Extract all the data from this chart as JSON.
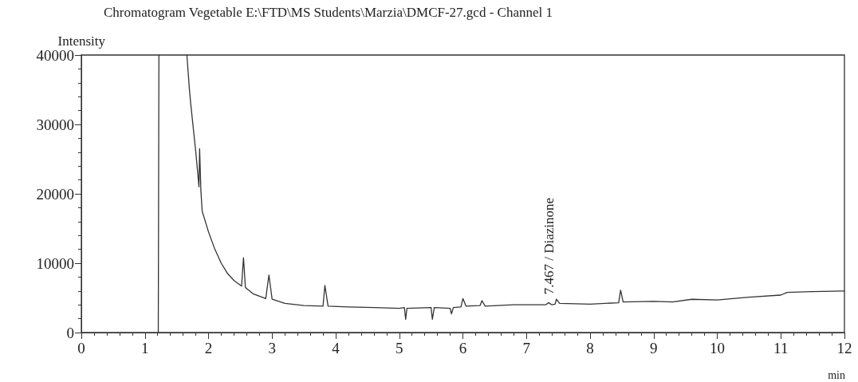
{
  "chart_data": {
    "type": "line",
    "title": "Chromatogram Vegetable E:\\FTD\\MS Students\\Marzia\\DMCF-27.gcd - Channel 1",
    "xlabel": "min",
    "ylabel": "Intensity",
    "xlim": [
      0,
      12
    ],
    "xticks": [
      0,
      1,
      2,
      3,
      4,
      5,
      6,
      7,
      8,
      9,
      10,
      11,
      12
    ],
    "ylim": [
      0,
      40000
    ],
    "yticks": [
      0,
      10000,
      20000,
      30000,
      40000
    ],
    "grid": false,
    "marker": "none",
    "line_style": "solid",
    "annotations": [
      {
        "text": "7.467 / Diazinone",
        "x": 7.467,
        "y": 4800
      }
    ],
    "series": [
      {
        "color": "#333333",
        "x": [
          1.21,
          1.22,
          1.23,
          1.66,
          1.7,
          1.72,
          1.8,
          1.85,
          1.86,
          1.88,
          1.9,
          2.0,
          2.1,
          2.2,
          2.3,
          2.4,
          2.52,
          2.55,
          2.58,
          2.7,
          2.9,
          2.95,
          3.0,
          3.2,
          3.5,
          3.8,
          3.83,
          3.88,
          4.2,
          4.6,
          5.0,
          5.08,
          5.1,
          5.12,
          5.5,
          5.52,
          5.55,
          5.8,
          5.82,
          5.85,
          5.97,
          6.0,
          6.05,
          6.27,
          6.3,
          6.35,
          6.8,
          7.3,
          7.35,
          7.4,
          7.45,
          7.47,
          7.52,
          8.0,
          8.45,
          8.48,
          8.52,
          9.0,
          9.3,
          9.6,
          10.0,
          10.5,
          11.0,
          11.1,
          11.5,
          12.0
        ],
        "values": [
          0,
          40000,
          null,
          40000,
          35000,
          33000,
          26000,
          21000,
          26500,
          20500,
          17500,
          14500,
          12000,
          10000,
          8500,
          7500,
          6700,
          10800,
          6500,
          5600,
          4900,
          8300,
          4800,
          4200,
          3900,
          3800,
          6800,
          3800,
          3700,
          3600,
          3500,
          3600,
          1900,
          3500,
          3600,
          1900,
          3600,
          3500,
          2700,
          3600,
          3700,
          4900,
          3800,
          3900,
          4600,
          3800,
          4000,
          4000,
          4300,
          4000,
          4100,
          4800,
          4200,
          4100,
          4300,
          6100,
          4400,
          4500,
          4400,
          4800,
          4700,
          5100,
          5400,
          5800,
          5900,
          6000
        ]
      }
    ]
  }
}
